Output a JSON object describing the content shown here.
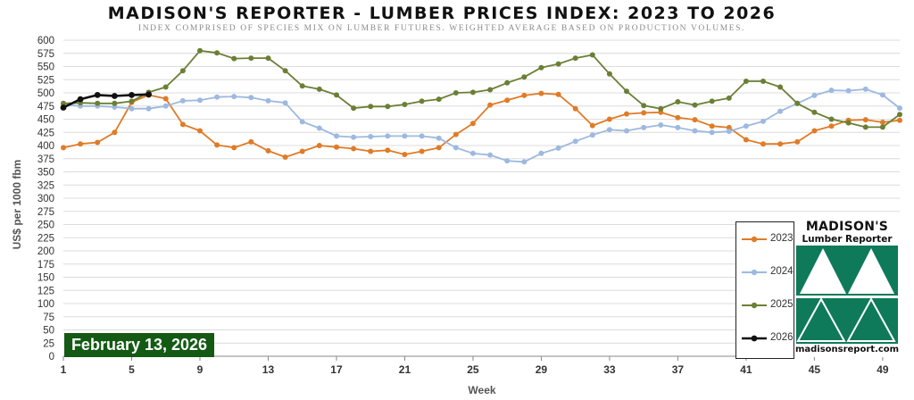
{
  "chart_data": {
    "type": "line",
    "title": "MADISON'S REPORTER - LUMBER PRICES INDEX: 2023 TO 2026",
    "subtitle": "INDEX COMPRISED OF SPECIES MIX ON LUMBER FUTURES. WEIGHTED AVERAGE BASED ON PRODUCTION VOLUMES.",
    "xlabel": "Week",
    "ylabel": "US$ per 1000 fbm",
    "xlim": [
      1,
      50
    ],
    "ylim": [
      0,
      600
    ],
    "x_ticks": [
      1,
      5,
      9,
      13,
      17,
      21,
      25,
      29,
      33,
      37,
      41,
      45,
      49
    ],
    "y_ticks": [
      0,
      25,
      50,
      75,
      100,
      125,
      150,
      175,
      200,
      225,
      250,
      275,
      300,
      325,
      350,
      375,
      400,
      425,
      450,
      475,
      500,
      525,
      550,
      575,
      600
    ],
    "grid": true,
    "legend_position": "bottom-right",
    "series": [
      {
        "name": "2023",
        "color": "#e07b27",
        "x": [
          1,
          2,
          3,
          4,
          5,
          6,
          7,
          8,
          9,
          10,
          11,
          12,
          13,
          14,
          15,
          16,
          17,
          18,
          19,
          20,
          21,
          22,
          23,
          24,
          25,
          26,
          27,
          28,
          29,
          30,
          31,
          32,
          33,
          34,
          35,
          36,
          37,
          38,
          39,
          40,
          41,
          42,
          43,
          44,
          45,
          46,
          47,
          48,
          49,
          50
        ],
        "values": [
          396,
          403,
          406,
          425,
          482,
          496,
          489,
          440,
          428,
          401,
          396,
          407,
          390,
          378,
          389,
          400,
          397,
          394,
          389,
          391,
          383,
          389,
          396,
          421,
          442,
          477,
          486,
          495,
          499,
          497,
          470,
          438,
          450,
          460,
          462,
          463,
          453,
          449,
          437,
          434,
          411,
          403,
          403,
          407,
          428,
          437,
          448,
          449,
          444,
          448
        ]
      },
      {
        "name": "2024",
        "color": "#9db9e0",
        "x": [
          1,
          2,
          3,
          4,
          5,
          6,
          7,
          8,
          9,
          10,
          11,
          12,
          13,
          14,
          15,
          16,
          17,
          18,
          19,
          20,
          21,
          22,
          23,
          24,
          25,
          26,
          27,
          28,
          29,
          30,
          31,
          32,
          33,
          34,
          35,
          36,
          37,
          38,
          39,
          40,
          41,
          42,
          43,
          44,
          45,
          46,
          47,
          48,
          49,
          50
        ],
        "values": [
          478,
          475,
          475,
          473,
          470,
          470,
          475,
          485,
          486,
          492,
          493,
          491,
          485,
          481,
          445,
          433,
          418,
          416,
          417,
          418,
          418,
          418,
          414,
          396,
          385,
          382,
          371,
          369,
          385,
          395,
          408,
          420,
          430,
          428,
          434,
          439,
          434,
          428,
          425,
          427,
          437,
          446,
          465,
          480,
          495,
          505,
          504,
          507,
          496,
          471
        ]
      },
      {
        "name": "2025",
        "color": "#6b7f35",
        "x": [
          1,
          2,
          3,
          4,
          5,
          6,
          7,
          8,
          9,
          10,
          11,
          12,
          13,
          14,
          15,
          16,
          17,
          18,
          19,
          20,
          21,
          22,
          23,
          24,
          25,
          26,
          27,
          28,
          29,
          30,
          31,
          32,
          33,
          34,
          35,
          36,
          37,
          38,
          39,
          40,
          41,
          42,
          43,
          44,
          45,
          46,
          47,
          48,
          49,
          50
        ],
        "values": [
          480,
          481,
          480,
          480,
          484,
          501,
          511,
          542,
          580,
          576,
          565,
          566,
          566,
          542,
          513,
          507,
          496,
          471,
          474,
          474,
          478,
          484,
          488,
          500,
          501,
          506,
          519,
          530,
          548,
          555,
          566,
          572,
          536,
          503,
          476,
          470,
          483,
          477,
          484,
          490,
          522,
          522,
          511,
          480,
          463,
          450,
          443,
          435,
          435,
          459
        ]
      },
      {
        "name": "2026",
        "color": "#111111",
        "x": [
          1,
          2,
          3,
          4,
          5,
          6
        ],
        "values": [
          472,
          488,
          496,
          494,
          496,
          497
        ]
      }
    ]
  },
  "date_badge": "February 13, 2026",
  "logo": {
    "line1": "MADISON'S",
    "line2": "Lumber Reporter",
    "url": "madisonsreport.com",
    "color": "#0e7a5a"
  }
}
